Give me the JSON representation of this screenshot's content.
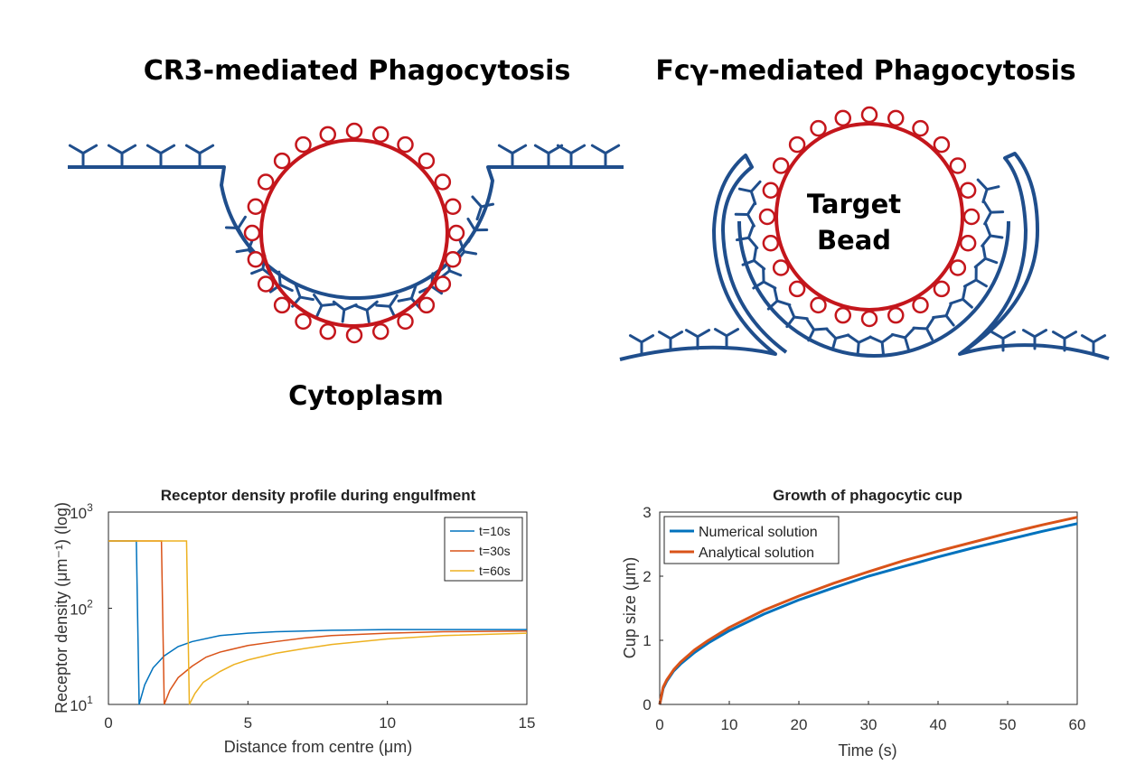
{
  "colors": {
    "membrane": "#1f4e8c",
    "ligand": "#c4161c",
    "series_blue": "#0072bd",
    "series_orange": "#d95319",
    "series_yellow": "#edb120"
  },
  "diagrams": {
    "left": {
      "title": "CR3-mediated Phagocytosis",
      "label": "Cytoplasm"
    },
    "right": {
      "title": "Fcγ-mediated Phagocytosis",
      "label_line1": "Target",
      "label_line2": "Bead"
    }
  },
  "chart_data": [
    {
      "type": "line",
      "title": "Receptor density profile during engulfment",
      "xlabel": "Distance from centre (μm)",
      "ylabel": "Receptor density (μm⁻¹) (log)",
      "y_scale": "log",
      "xlim": [
        0,
        15
      ],
      "ylim": [
        10,
        1000
      ],
      "x_ticks": [
        "0",
        "5",
        "10",
        "15"
      ],
      "y_tick_powers": [
        "1",
        "2",
        "3"
      ],
      "legend": "top-right",
      "series": [
        {
          "name": "t=10s",
          "color": "#0072bd",
          "x": [
            0,
            1.0,
            1.0,
            1.1,
            1.3,
            1.6,
            2,
            2.5,
            3,
            4,
            5,
            6,
            7,
            8,
            10,
            12,
            15
          ],
          "y": [
            500,
            500,
            500,
            10,
            16,
            24,
            32,
            40,
            45,
            52,
            55,
            57,
            58,
            59,
            60,
            60,
            60
          ]
        },
        {
          "name": "t=30s",
          "color": "#d95319",
          "x": [
            0,
            1.9,
            1.9,
            2.0,
            2.2,
            2.5,
            3,
            3.5,
            4,
            5,
            6,
            7,
            8,
            10,
            12,
            15
          ],
          "y": [
            500,
            500,
            500,
            10,
            14,
            19,
            25,
            31,
            35,
            41,
            45,
            49,
            52,
            55,
            57,
            58
          ]
        },
        {
          "name": "t=60s",
          "color": "#edb120",
          "x": [
            0,
            2.8,
            2.8,
            2.9,
            3.1,
            3.4,
            4,
            4.5,
            5,
            6,
            7,
            8,
            10,
            12,
            15
          ],
          "y": [
            500,
            500,
            500,
            10,
            13,
            17,
            22,
            26,
            29,
            34,
            38,
            42,
            48,
            52,
            55
          ]
        }
      ]
    },
    {
      "type": "line",
      "title": "Growth of phagocytic cup",
      "xlabel": "Time (s)",
      "ylabel": "Cup size (μm)",
      "xlim": [
        0,
        60
      ],
      "ylim": [
        0,
        3
      ],
      "x_ticks": [
        "0",
        "10",
        "20",
        "30",
        "40",
        "50",
        "60"
      ],
      "y_ticks": [
        "0",
        "1",
        "2",
        "3"
      ],
      "legend": "top-left",
      "series": [
        {
          "name": "Numerical solution",
          "color": "#0072bd",
          "x": [
            0,
            0.5,
            1,
            2,
            3,
            5,
            7,
            10,
            15,
            20,
            25,
            30,
            35,
            40,
            45,
            50,
            55,
            60
          ],
          "y": [
            0,
            0.25,
            0.36,
            0.52,
            0.63,
            0.81,
            0.96,
            1.15,
            1.41,
            1.63,
            1.82,
            2.0,
            2.15,
            2.3,
            2.44,
            2.57,
            2.7,
            2.82
          ]
        },
        {
          "name": "Analytical solution",
          "color": "#d95319",
          "x": [
            0,
            0.5,
            1,
            2,
            3,
            5,
            7,
            10,
            15,
            20,
            25,
            30,
            35,
            40,
            45,
            50,
            55,
            60
          ],
          "y": [
            0,
            0.27,
            0.38,
            0.54,
            0.66,
            0.85,
            1.0,
            1.2,
            1.47,
            1.69,
            1.89,
            2.07,
            2.24,
            2.39,
            2.53,
            2.67,
            2.8,
            2.92
          ]
        }
      ]
    }
  ]
}
